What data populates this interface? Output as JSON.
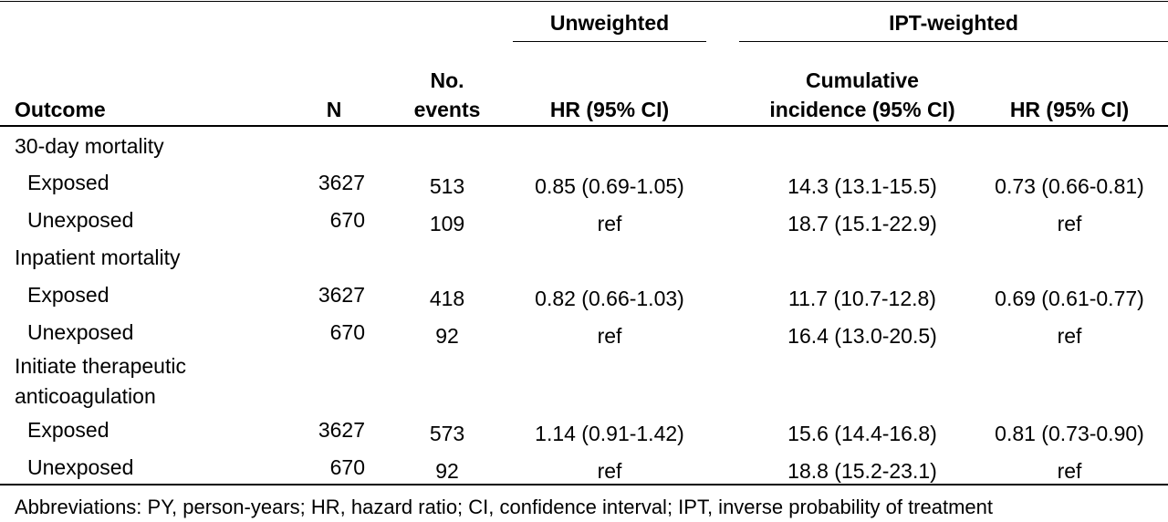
{
  "header": {
    "group_unweighted": "Unweighted",
    "group_ipt": "IPT-weighted",
    "col_outcome": "Outcome",
    "col_n": "N",
    "col_events_line1": "No.",
    "col_events_line2": "events",
    "col_hr_unweighted": "HR (95% CI)",
    "col_ci_line1": "Cumulative",
    "col_ci_line2": "incidence (95% CI)",
    "col_hr_ipt": "HR (95% CI)"
  },
  "sections": [
    {
      "label_lines": [
        "30-day mortality"
      ],
      "rows": [
        {
          "label": "Exposed",
          "n": "3627",
          "events": "513",
          "hr_unweighted": "0.85 (0.69-1.05)",
          "cum_incidence": "14.3 (13.1-15.5)",
          "hr_ipt": "0.73 (0.66-0.81)"
        },
        {
          "label": "Unexposed",
          "n": "670",
          "events": "109",
          "hr_unweighted": "ref",
          "cum_incidence": "18.7 (15.1-22.9)",
          "hr_ipt": "ref"
        }
      ]
    },
    {
      "label_lines": [
        "Inpatient mortality"
      ],
      "rows": [
        {
          "label": "Exposed",
          "n": "3627",
          "events": "418",
          "hr_unweighted": "0.82 (0.66-1.03)",
          "cum_incidence": "11.7 (10.7-12.8)",
          "hr_ipt": "0.69 (0.61-0.77)"
        },
        {
          "label": "Unexposed",
          "n": "670",
          "events": "92",
          "hr_unweighted": "ref",
          "cum_incidence": "16.4 (13.0-20.5)",
          "hr_ipt": "ref"
        }
      ]
    },
    {
      "label_lines": [
        "Initiate therapeutic",
        "anticoagulation"
      ],
      "rows": [
        {
          "label": "Exposed",
          "n": "3627",
          "events": "573",
          "hr_unweighted": "1.14 (0.91-1.42)",
          "cum_incidence": "15.6 (14.4-16.8)",
          "hr_ipt": "0.81 (0.73-0.90)"
        },
        {
          "label": "Unexposed",
          "n": "670",
          "events": "92",
          "hr_unweighted": "ref",
          "cum_incidence": "18.8 (15.2-23.1)",
          "hr_ipt": "ref"
        }
      ]
    }
  ],
  "footnote": "Abbreviations: PY, person-years; HR, hazard ratio; CI, confidence interval; IPT, inverse probability of treatment"
}
